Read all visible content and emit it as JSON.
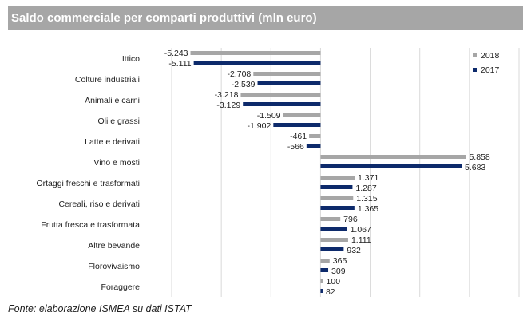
{
  "title": "Saldo commerciale per comparti produttivi (mln euro)",
  "footer": "Fonte: elaborazione ISMEA su dati ISTAT",
  "chart_data": {
    "type": "bar",
    "orientation": "horizontal",
    "categories": [
      "Ittico",
      "Colture industriali",
      "Animali e carni",
      "Oli e grassi",
      "Latte e derivati",
      "Vino e mosti",
      "Ortaggi freschi e trasformati",
      "Cereali, riso e derivati",
      "Frutta fresca e trasformata",
      "Altre bevande",
      "Florovivaismo",
      "Foraggere"
    ],
    "series": [
      {
        "name": "2018",
        "color": "#a6a6a6",
        "values": [
          -5243,
          -2708,
          -3218,
          -1509,
          -461,
          5858,
          1371,
          1315,
          796,
          1111,
          365,
          100
        ],
        "labels": [
          "-5.243",
          "-2.708",
          "-3.218",
          "-1.509",
          "-461",
          "5.858",
          "1.371",
          "1.315",
          "796",
          "1.111",
          "365",
          "100"
        ]
      },
      {
        "name": "2017",
        "color": "#0d2a6b",
        "values": [
          -5111,
          -2539,
          -3129,
          -1902,
          -566,
          5683,
          1287,
          1365,
          1067,
          932,
          309,
          82
        ],
        "labels": [
          "-5.111",
          "-2.539",
          "-3.129",
          "-1.902",
          "-566",
          "5.683",
          "1.287",
          "1.365",
          "1.067",
          "932",
          "309",
          "82"
        ]
      }
    ],
    "xlim": [
      -6000,
      8000
    ],
    "grid": true,
    "legend": "top-right"
  }
}
